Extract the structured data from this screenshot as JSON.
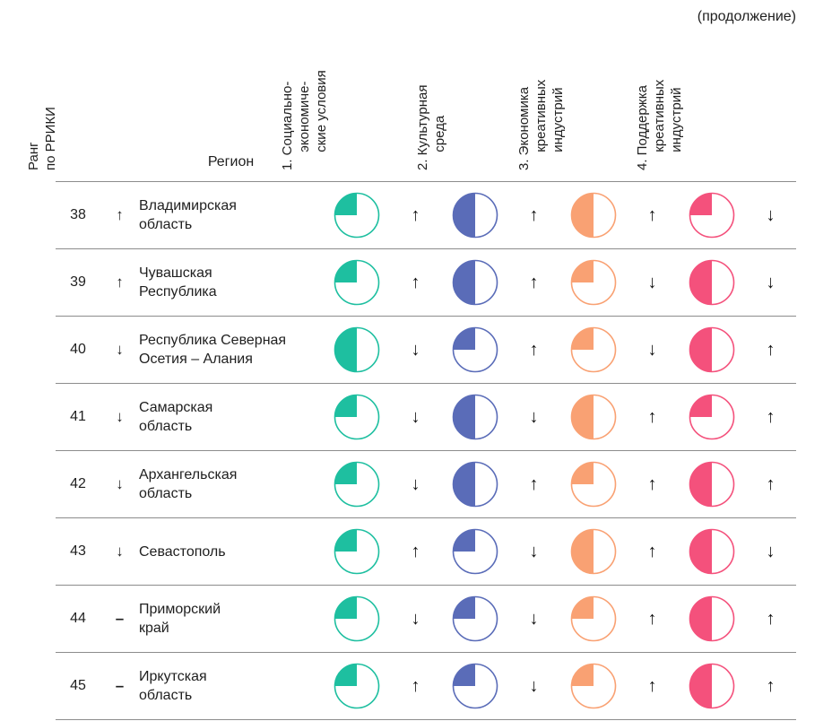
{
  "page": {
    "continuation_label": "(продолжение)"
  },
  "arrows": {
    "up": "↑",
    "down": "↓",
    "same": "–"
  },
  "table": {
    "headers": {
      "rank": "Ранг\nпо РРИКИ",
      "region": "Регион",
      "factors": [
        "1. Социально-\nэкономиче-\nские условия",
        "2. Культурная\nсреда",
        "3. Экономика\nкреативных\nиндустрий",
        "4. Поддержка\nкреативных\nиндустрий"
      ]
    },
    "factor_colors": [
      "#1ebfa0",
      "#5a6cb8",
      "#f9a173",
      "#f4517c"
    ],
    "rows": [
      {
        "rank": "38",
        "trend": "up",
        "region": "Владимирская\nобласть",
        "factors": [
          {
            "fraction": 0.25,
            "trend": "up"
          },
          {
            "fraction": 0.5,
            "trend": "up"
          },
          {
            "fraction": 0.5,
            "trend": "up"
          },
          {
            "fraction": 0.25,
            "trend": "down"
          }
        ]
      },
      {
        "rank": "39",
        "trend": "up",
        "region": "Чувашская\nРеспублика",
        "factors": [
          {
            "fraction": 0.25,
            "trend": "up"
          },
          {
            "fraction": 0.5,
            "trend": "up"
          },
          {
            "fraction": 0.25,
            "trend": "down"
          },
          {
            "fraction": 0.5,
            "trend": "down"
          }
        ]
      },
      {
        "rank": "40",
        "trend": "down",
        "region": "Республика Северная\nОсетия – Алания",
        "factors": [
          {
            "fraction": 0.5,
            "trend": "down"
          },
          {
            "fraction": 0.25,
            "trend": "up"
          },
          {
            "fraction": 0.25,
            "trend": "down"
          },
          {
            "fraction": 0.5,
            "trend": "up"
          }
        ]
      },
      {
        "rank": "41",
        "trend": "down",
        "region": "Самарская\nобласть",
        "factors": [
          {
            "fraction": 0.25,
            "trend": "down"
          },
          {
            "fraction": 0.5,
            "trend": "down"
          },
          {
            "fraction": 0.5,
            "trend": "up"
          },
          {
            "fraction": 0.25,
            "trend": "up"
          }
        ]
      },
      {
        "rank": "42",
        "trend": "down",
        "region": "Архангельская\nобласть",
        "factors": [
          {
            "fraction": 0.25,
            "trend": "down"
          },
          {
            "fraction": 0.5,
            "trend": "up"
          },
          {
            "fraction": 0.25,
            "trend": "up"
          },
          {
            "fraction": 0.5,
            "trend": "up"
          }
        ]
      },
      {
        "rank": "43",
        "trend": "down",
        "region": "Севастополь",
        "factors": [
          {
            "fraction": 0.25,
            "trend": "up"
          },
          {
            "fraction": 0.25,
            "trend": "down"
          },
          {
            "fraction": 0.5,
            "trend": "up"
          },
          {
            "fraction": 0.5,
            "trend": "down"
          }
        ]
      },
      {
        "rank": "44",
        "trend": "same",
        "region": "Приморский\nкрай",
        "factors": [
          {
            "fraction": 0.25,
            "trend": "down"
          },
          {
            "fraction": 0.25,
            "trend": "down"
          },
          {
            "fraction": 0.25,
            "trend": "up"
          },
          {
            "fraction": 0.5,
            "trend": "up"
          }
        ]
      },
      {
        "rank": "45",
        "trend": "same",
        "region": "Иркутская\nобласть",
        "factors": [
          {
            "fraction": 0.25,
            "trend": "up"
          },
          {
            "fraction": 0.25,
            "trend": "down"
          },
          {
            "fraction": 0.25,
            "trend": "up"
          },
          {
            "fraction": 0.5,
            "trend": "up"
          }
        ]
      }
    ]
  }
}
